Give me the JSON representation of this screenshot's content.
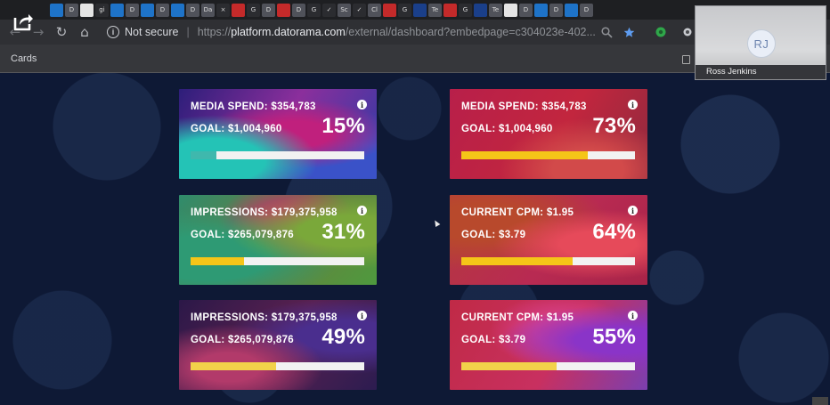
{
  "browser": {
    "tabs": [
      {
        "icon": "blue-doc-icon",
        "style": "t-blue",
        "glyph": ""
      },
      {
        "icon": "doc-icon",
        "style": "t-gray",
        "glyph": "D"
      },
      {
        "icon": "app-icon",
        "style": "t-white",
        "glyph": ""
      },
      {
        "icon": "gmail-icon",
        "style": "t-dark",
        "glyph": "gi"
      },
      {
        "icon": "cloud-icon",
        "style": "t-blue",
        "glyph": ""
      },
      {
        "icon": "doc-icon",
        "style": "t-gray",
        "glyph": "D"
      },
      {
        "icon": "cloud-icon",
        "style": "t-blue",
        "glyph": ""
      },
      {
        "icon": "doc-icon",
        "style": "t-gray",
        "glyph": "D"
      },
      {
        "icon": "cloud-icon",
        "style": "t-blue",
        "glyph": ""
      },
      {
        "icon": "doc-icon",
        "style": "t-gray",
        "glyph": "D"
      },
      {
        "icon": "doc-icon",
        "style": "t-gray",
        "glyph": "Da"
      },
      {
        "icon": "close-icon",
        "style": "t-dark",
        "glyph": "×"
      },
      {
        "icon": "datorama-icon",
        "style": "t-red",
        "glyph": ""
      },
      {
        "icon": "google-icon",
        "style": "t-dark",
        "glyph": "G"
      },
      {
        "icon": "doc-icon",
        "style": "t-gray",
        "glyph": "D"
      },
      {
        "icon": "datorama-icon",
        "style": "t-red",
        "glyph": ""
      },
      {
        "icon": "doc-icon",
        "style": "t-gray",
        "glyph": "D"
      },
      {
        "icon": "google-icon",
        "style": "t-dark",
        "glyph": "G"
      },
      {
        "icon": "check-icon",
        "style": "t-dark",
        "glyph": "✓"
      },
      {
        "icon": "doc-icon",
        "style": "t-gray",
        "glyph": "Sc"
      },
      {
        "icon": "check-icon",
        "style": "t-dark",
        "glyph": "✓"
      },
      {
        "icon": "doc-icon",
        "style": "t-gray",
        "glyph": "Cl"
      },
      {
        "icon": "datorama-icon",
        "style": "t-red",
        "glyph": ""
      },
      {
        "icon": "google-icon",
        "style": "t-dark",
        "glyph": "G"
      },
      {
        "icon": "app-icon",
        "style": "t-navy",
        "glyph": ""
      },
      {
        "icon": "doc-icon",
        "style": "t-gray",
        "glyph": "Te"
      },
      {
        "icon": "datorama-icon",
        "style": "t-red",
        "glyph": ""
      },
      {
        "icon": "google-icon",
        "style": "t-dark",
        "glyph": "G"
      },
      {
        "icon": "app-icon",
        "style": "t-navy",
        "glyph": ""
      },
      {
        "icon": "doc-icon",
        "style": "t-gray",
        "glyph": "Te"
      },
      {
        "icon": "blank-page-icon",
        "style": "t-white",
        "glyph": ""
      },
      {
        "icon": "doc-icon",
        "style": "t-gray",
        "glyph": "D"
      },
      {
        "icon": "cloud-icon",
        "style": "t-blue",
        "glyph": ""
      },
      {
        "icon": "doc-icon",
        "style": "t-gray",
        "glyph": "D"
      },
      {
        "icon": "cloud-icon",
        "style": "t-blue",
        "glyph": ""
      },
      {
        "icon": "doc-icon",
        "style": "t-gray",
        "glyph": "D"
      }
    ],
    "security_label": "Not secure",
    "url_scheme": "https://",
    "url_host": "platform.datorama.com",
    "url_path": "/external/dashboard?embedpage=c304023e-402...",
    "bookmark_label": "Cards"
  },
  "participant": {
    "initials": "RJ",
    "name": "Ross Jenkins"
  },
  "colors": {
    "progress_teal": "#3fb8ad",
    "progress_yellow": "#f5c518",
    "progress_yellow_light": "#f2d24a",
    "track": "#f2f2f2"
  },
  "cards": [
    {
      "title": "MEDIA SPEND: $354,783",
      "goal": "GOAL: $1,004,960",
      "percent_label": "15%",
      "progress": 0.15,
      "bar_color": "#3fb8ad"
    },
    {
      "title": "MEDIA SPEND: $354,783",
      "goal": "GOAL: $1,004,960",
      "percent_label": "73%",
      "progress": 0.73,
      "bar_color": "#f5c518"
    },
    {
      "title": "IMPRESSIONS: $179,375,958",
      "goal": "GOAL: $265,079,876",
      "percent_label": "31%",
      "progress": 0.31,
      "bar_color": "#f5c518"
    },
    {
      "title": "CURRENT CPM: $1.95",
      "goal": "GOAL: $3.79",
      "percent_label": "64%",
      "progress": 0.64,
      "bar_color": "#f5c518"
    },
    {
      "title": "IMPRESSIONS: $179,375,958",
      "goal": "GOAL: $265,079,876",
      "percent_label": "49%",
      "progress": 0.49,
      "bar_color": "#f2d24a"
    },
    {
      "title": "CURRENT CPM: $1.95",
      "goal": "GOAL: $3.79",
      "percent_label": "55%",
      "progress": 0.55,
      "bar_color": "#f2d24a"
    }
  ]
}
